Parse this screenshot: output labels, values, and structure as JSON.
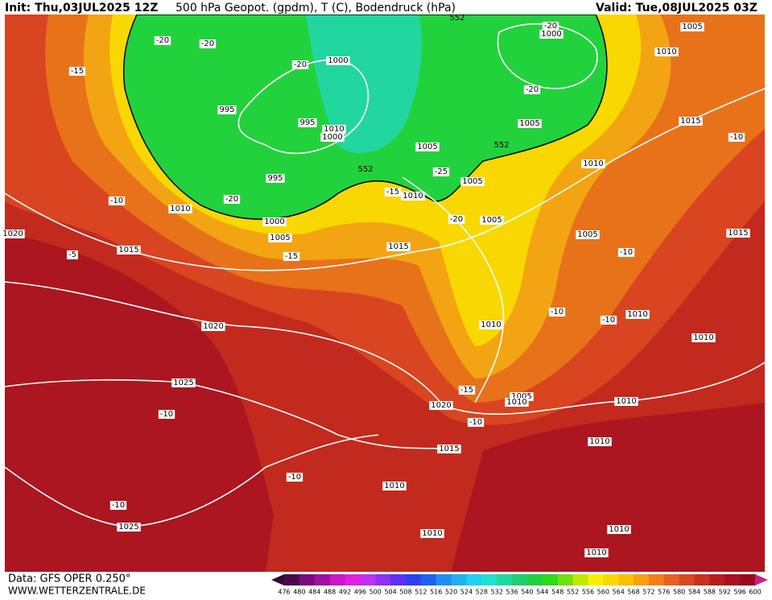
{
  "header": {
    "init": "Init: Thu,03JUL2025 12Z",
    "title": "500 hPa Geopot. (gpdm), T (C), Bodendruck (hPa)",
    "valid": "Valid: Tue,08JUL2025 03Z"
  },
  "map": {
    "isobar_labels": [
      "1000",
      "1005",
      "1010",
      "1015",
      "1010",
      "1005",
      "1015",
      "1010",
      "1010",
      "1000",
      "995",
      "995",
      "1010",
      "1000",
      "995",
      "1005",
      "1005",
      "1005",
      "1010",
      "1005",
      "1010",
      "1000",
      "1005",
      "1015",
      "1015",
      "1020",
      "1010",
      "1025",
      "1020",
      "1005",
      "1010",
      "1010",
      "1015",
      "1010",
      "1010",
      "1025",
      "1010",
      "1010",
      "1010",
      "1020"
    ],
    "height_labels": [
      "552",
      "552",
      "552"
    ],
    "temperature_labels": [
      "-20",
      "-20",
      "-20",
      "-20",
      "-20",
      "-20",
      "-20",
      "-15",
      "-15",
      "-15",
      "-15",
      "-10",
      "-10",
      "-10",
      "-10",
      "-10",
      "-10",
      "-10",
      "-10",
      "-10",
      "-5",
      "-25"
    ]
  },
  "colorbar": {
    "ticks": [
      476,
      480,
      484,
      488,
      492,
      496,
      500,
      504,
      508,
      512,
      516,
      520,
      524,
      528,
      532,
      536,
      540,
      544,
      548,
      552,
      556,
      560,
      564,
      568,
      572,
      576,
      580,
      584,
      588,
      592,
      596,
      600
    ]
  },
  "footer": {
    "data_source": "Data: GFS OPER 0.250°",
    "website": "WWW.WETTERZENTRALE.DE"
  }
}
